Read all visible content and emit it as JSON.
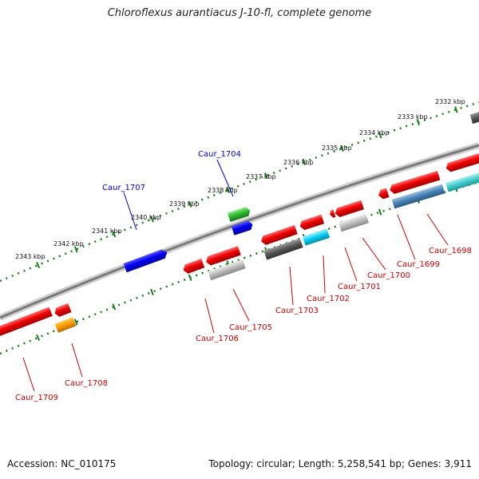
{
  "title": "Chloroflexus aurantiacus J-10-fl, complete genome",
  "footer": {
    "accession": "Accession: NC_010175",
    "summary": "Topology: circular; Length: 5,258,541 bp; Genes: 3,911"
  },
  "colors": {
    "backbone": "#8a8a8a",
    "tick": "#1c7f1c",
    "label_forward": "#0000cc",
    "label_reverse": "#cc0000"
  },
  "tick_labels": [
    "2332 kbp",
    "2333 kbp",
    "2334 kbp",
    "2335 kbp",
    "2336 kbp",
    "2337 kbp",
    "2338 kbp",
    "2339 kbp",
    "2340 kbp",
    "2341 kbp",
    "2342 kbp",
    "2343 kbp"
  ],
  "genes": {
    "forward": [
      "Caur_1704",
      "Caur_1707"
    ],
    "reverse": [
      "Caur_1698",
      "Caur_1699",
      "Caur_1700",
      "Caur_1701",
      "Caur_1702",
      "Caur_1703",
      "Caur_1705",
      "Caur_1706",
      "Caur_1708",
      "Caur_1709"
    ]
  }
}
